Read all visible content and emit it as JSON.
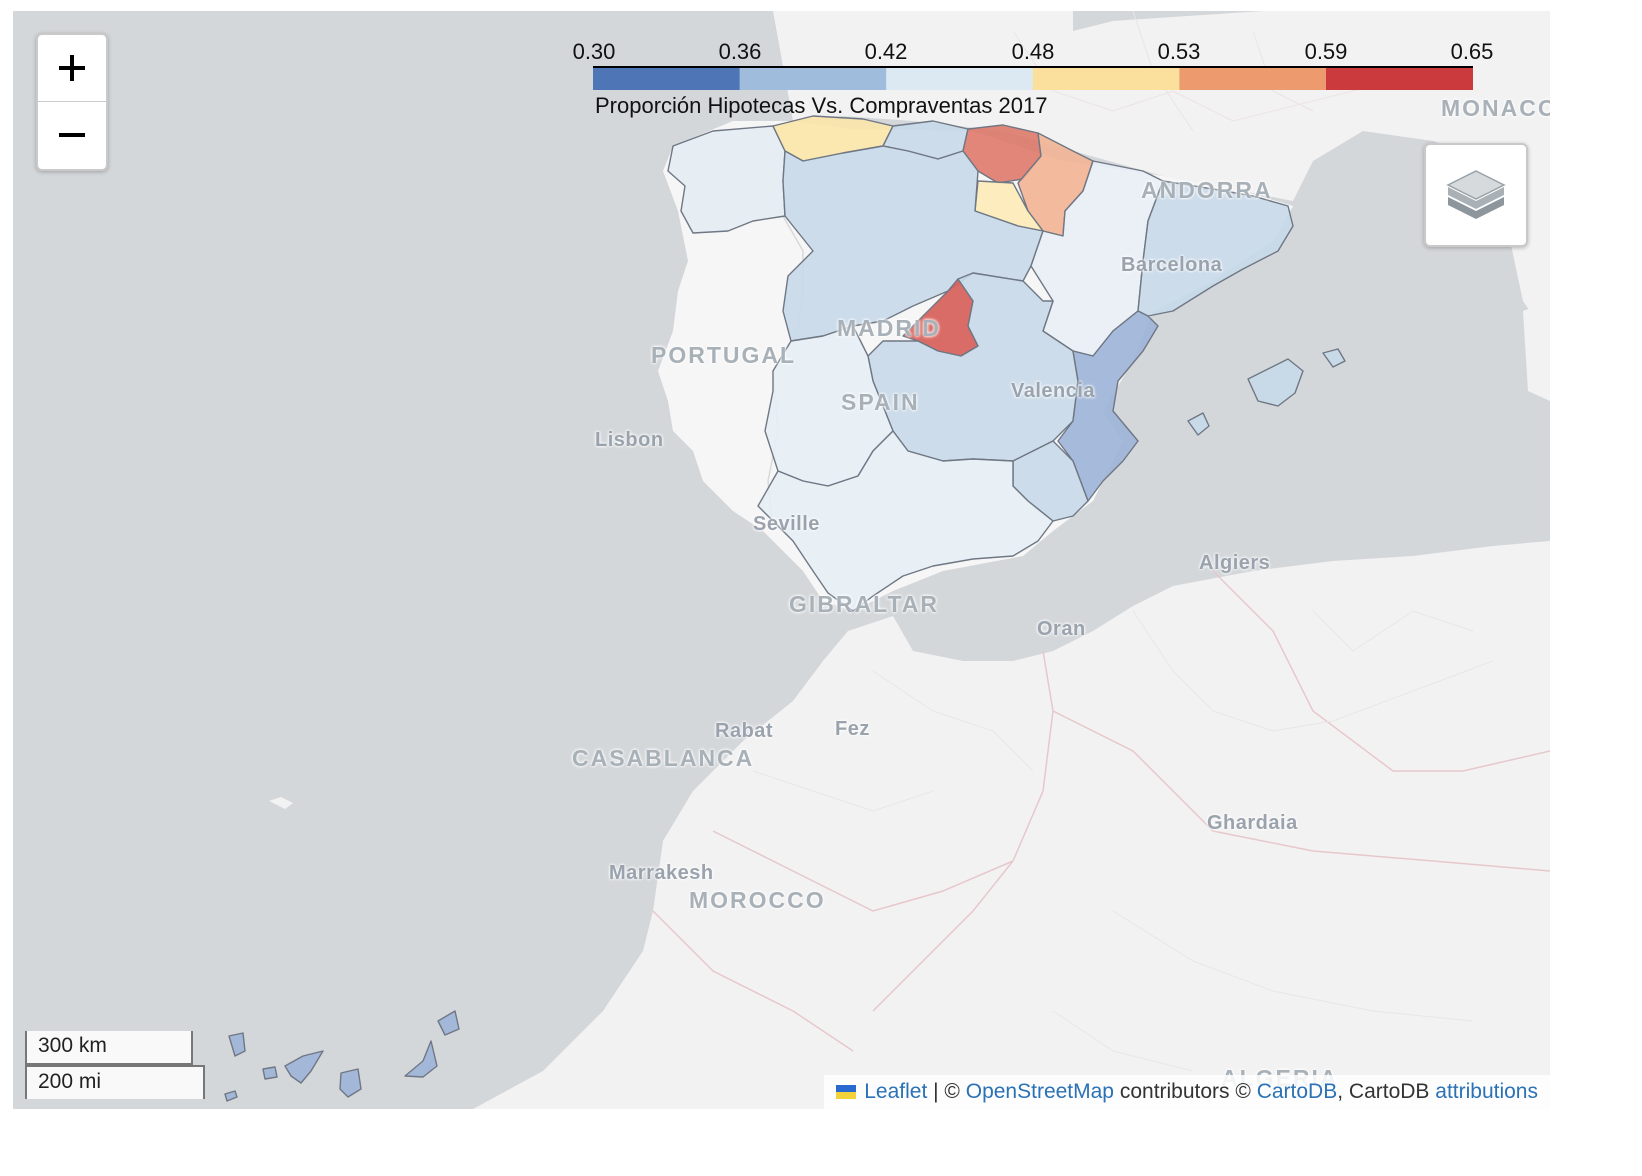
{
  "legend": {
    "ticks": [
      "0.30",
      "0.36",
      "0.42",
      "0.48",
      "0.53",
      "0.59",
      "0.65"
    ],
    "colors": [
      "#4e75b5",
      "#9fbcdc",
      "#dde9f2",
      "#fbdf9c",
      "#ee9a6f",
      "#cb3a3c"
    ],
    "caption": "Proporción Hipotecas Vs. Compraventas 2017"
  },
  "zoom": {
    "in_label": "+",
    "out_label": "−"
  },
  "layers_icon": "layers-icon",
  "places": {
    "monaco": "MONACO",
    "andorra": "ANDORRA",
    "barcelona": "Barcelona",
    "madrid": "MADRID",
    "portugal": "PORTUGAL",
    "spain": "SPAIN",
    "valencia": "Valencia",
    "lisbon": "Lisbon",
    "seville": "Seville",
    "gibraltar": "GIBRALTAR",
    "algiers": "Algiers",
    "oran": "Oran",
    "rabat": "Rabat",
    "fez": "Fez",
    "casablanca": "CASABLANCA",
    "ghardaia": "Ghardaia",
    "marrakesh": "Marrakesh",
    "morocco": "MOROCCO",
    "algeria": "ALGERIA"
  },
  "scale": {
    "km": "300 km",
    "mi": "200 mi"
  },
  "attribution": {
    "leaflet": "Leaflet",
    "sep1": " | © ",
    "osm": "OpenStreetMap",
    "sep2": " contributors © ",
    "carto": "CartoDB",
    "sep3": ", CartoDB ",
    "attributions": "attributions"
  }
}
